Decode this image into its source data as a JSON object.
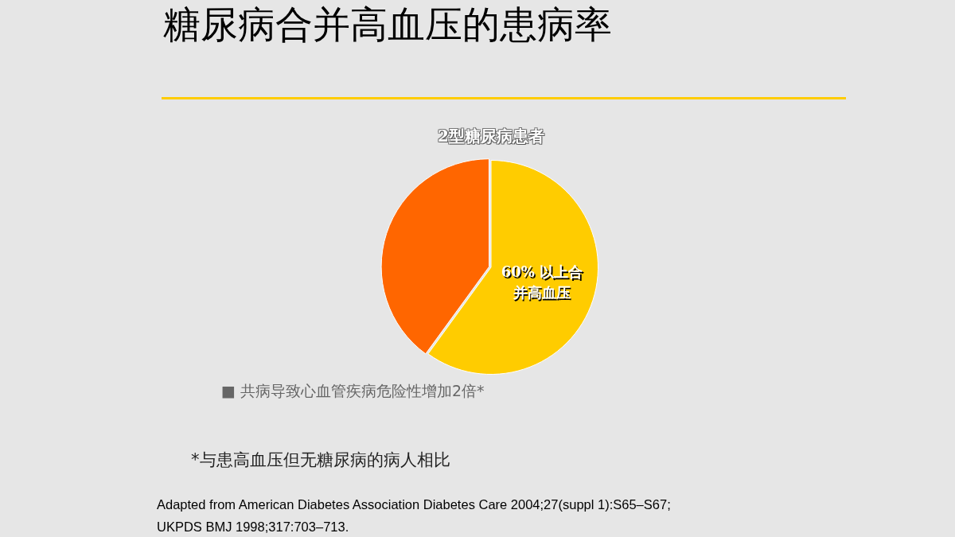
{
  "chart_data": {
    "type": "pie",
    "title": "糖尿病合并高血压的患病率",
    "subtitle": "2型糖尿病患者",
    "categories": [
      "以上合并高血压",
      null
    ],
    "values": [
      60,
      40
    ],
    "colors": [
      "#ffcc00",
      "#ff6600"
    ],
    "value_labels": [
      "60%",
      null
    ],
    "annotations": [
      "■ 共病导致心血管疾病危险性增加2倍*",
      "*与患高血压但无糖尿病的病人相比",
      "Adapted from American Diabetes Association Diabetes Care 2004;27(suppl 1):S65–S67; UKPDS BMJ 1998;317:703–713."
    ]
  }
}
